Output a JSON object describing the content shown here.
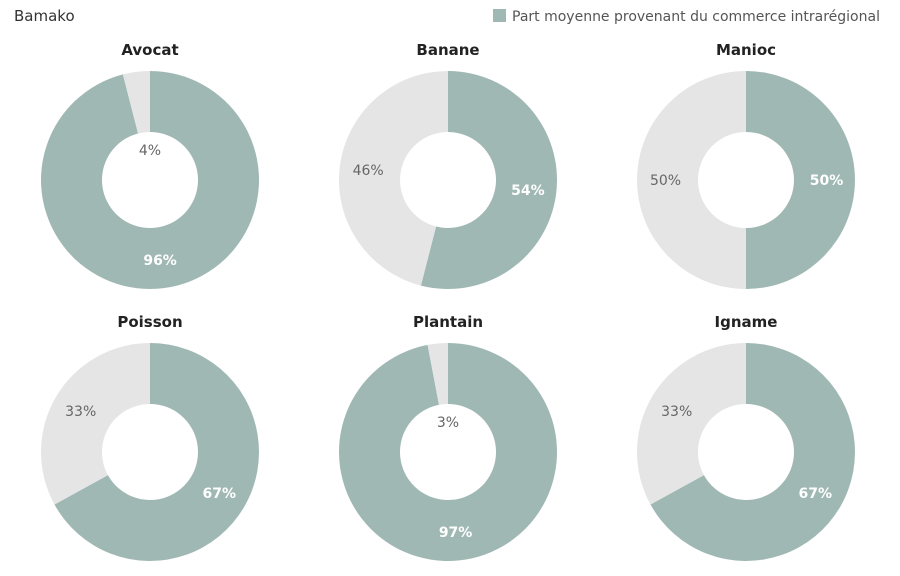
{
  "chart_data": {
    "type": "pie",
    "variant": "donut",
    "title": "Bamako",
    "legend": {
      "label": "Part moyenne provenant du commerce intrarégional",
      "placement": "top-right"
    },
    "colors": {
      "intraregional": "#a0b8b4",
      "rest": "#e5e5e5"
    },
    "panels": [
      {
        "title": "Avocat",
        "value": 96,
        "value_label": "96%",
        "rest_label": "4%"
      },
      {
        "title": "Banane",
        "value": 54,
        "value_label": "54%",
        "rest_label": "46%"
      },
      {
        "title": "Manioc",
        "value": 50,
        "value_label": "50%",
        "rest_label": "50%"
      },
      {
        "title": "Poisson",
        "value": 67,
        "value_label": "67%",
        "rest_label": "33%"
      },
      {
        "title": "Plantain",
        "value": 97,
        "value_label": "97%",
        "rest_label": "3%"
      },
      {
        "title": "Igname",
        "value": 67,
        "value_label": "67%",
        "rest_label": "33%"
      }
    ]
  }
}
